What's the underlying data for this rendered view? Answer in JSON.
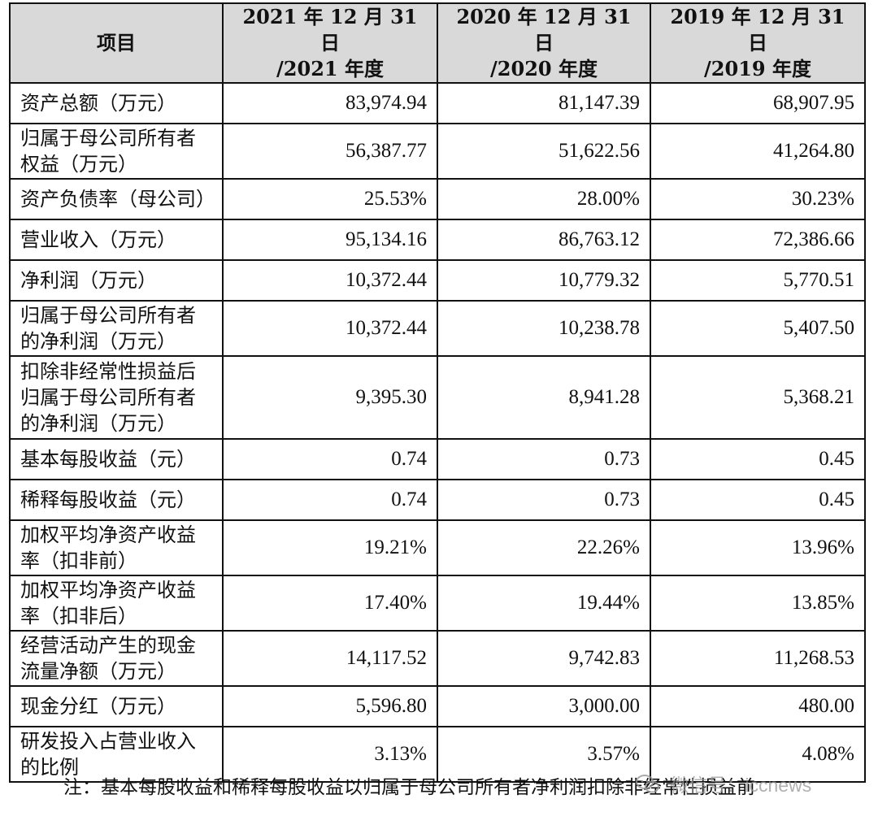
{
  "table": {
    "headers": [
      {
        "line1": "项目",
        "line2": ""
      },
      {
        "line1": "2021 年 12 月 31 日",
        "line2": "/2021 年度"
      },
      {
        "line1": "2020 年 12 月 31 日",
        "line2": "/2020 年度"
      },
      {
        "line1": "2019 年 12 月 31 日",
        "line2": "/2019 年度"
      }
    ],
    "rows": [
      {
        "label": "资产总额（万元）",
        "v2021": "83,974.94",
        "v2020": "81,147.39",
        "v2019": "68,907.95"
      },
      {
        "label": "归属于母公司所有者权益（万元）",
        "v2021": "56,387.77",
        "v2020": "51,622.56",
        "v2019": "41,264.80"
      },
      {
        "label": "资产负债率（母公司）",
        "v2021": "25.53%",
        "v2020": "28.00%",
        "v2019": "30.23%"
      },
      {
        "label": "营业收入（万元）",
        "v2021": "95,134.16",
        "v2020": "86,763.12",
        "v2019": "72,386.66"
      },
      {
        "label": "净利润（万元）",
        "v2021": "10,372.44",
        "v2020": "10,779.32",
        "v2019": "5,770.51"
      },
      {
        "label": "归属于母公司所有者的净利润（万元）",
        "v2021": "10,372.44",
        "v2020": "10,238.78",
        "v2019": "5,407.50"
      },
      {
        "label": "扣除非经常性损益后归属于母公司所有者的净利润（万元）",
        "v2021": "9,395.30",
        "v2020": "8,941.28",
        "v2019": "5,368.21"
      },
      {
        "label": "基本每股收益（元）",
        "v2021": "0.74",
        "v2020": "0.73",
        "v2019": "0.45"
      },
      {
        "label": "稀释每股收益（元）",
        "v2021": "0.74",
        "v2020": "0.73",
        "v2019": "0.45"
      },
      {
        "label": "加权平均净资产收益率（扣非前）",
        "v2021": "19.21%",
        "v2020": "22.26%",
        "v2019": "13.96%"
      },
      {
        "label": "加权平均净资产收益率（扣非后）",
        "v2021": "17.40%",
        "v2020": "19.44%",
        "v2019": "13.85%"
      },
      {
        "label": "经营活动产生的现金流量净额（万元）",
        "v2021": "14,117.52",
        "v2020": "9,742.83",
        "v2019": "11,268.53"
      },
      {
        "label": "现金分红（万元）",
        "v2021": "5,596.80",
        "v2020": "3,000.00",
        "v2019": "480.00"
      },
      {
        "label": "研发投入占营业收入的比例",
        "v2021": "3.13%",
        "v2020": "3.57%",
        "v2019": "4.08%"
      }
    ]
  },
  "footnote": "注：基本每股收益和稀释每股收益以归属于母公司所有者净利润扣除非经常性损益前",
  "watermark": {
    "text": "微信号：iccnews",
    "icon": "wechat-icon"
  }
}
